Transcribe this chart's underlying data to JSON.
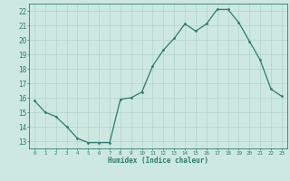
{
  "x": [
    0,
    1,
    2,
    3,
    4,
    5,
    6,
    7,
    8,
    9,
    10,
    11,
    12,
    13,
    14,
    15,
    16,
    17,
    18,
    19,
    20,
    21,
    22,
    23
  ],
  "y": [
    15.8,
    15.0,
    14.7,
    14.0,
    13.2,
    12.9,
    12.9,
    12.9,
    15.9,
    16.0,
    16.4,
    18.2,
    19.3,
    20.1,
    21.1,
    20.6,
    21.1,
    22.1,
    22.1,
    21.2,
    19.9,
    18.6,
    16.6,
    16.1
  ],
  "xlabel": "Humidex (Indice chaleur)",
  "line_color": "#2d7b6e",
  "marker_color": "#2d7b6e",
  "bg_color": "#cde8e0",
  "grid_color": "#aacfc5",
  "axis_color": "#2d7b6e",
  "tick_label_color": "#2d7b6e",
  "xlabel_color": "#2d7b6e",
  "ylim": [
    12.5,
    22.5
  ],
  "yticks": [
    13,
    14,
    15,
    16,
    17,
    18,
    19,
    20,
    21,
    22
  ],
  "xticks": [
    0,
    1,
    2,
    3,
    4,
    5,
    6,
    7,
    8,
    9,
    10,
    11,
    12,
    13,
    14,
    15,
    16,
    17,
    18,
    19,
    20,
    21,
    22,
    23
  ],
  "xlim": [
    -0.5,
    23.5
  ]
}
